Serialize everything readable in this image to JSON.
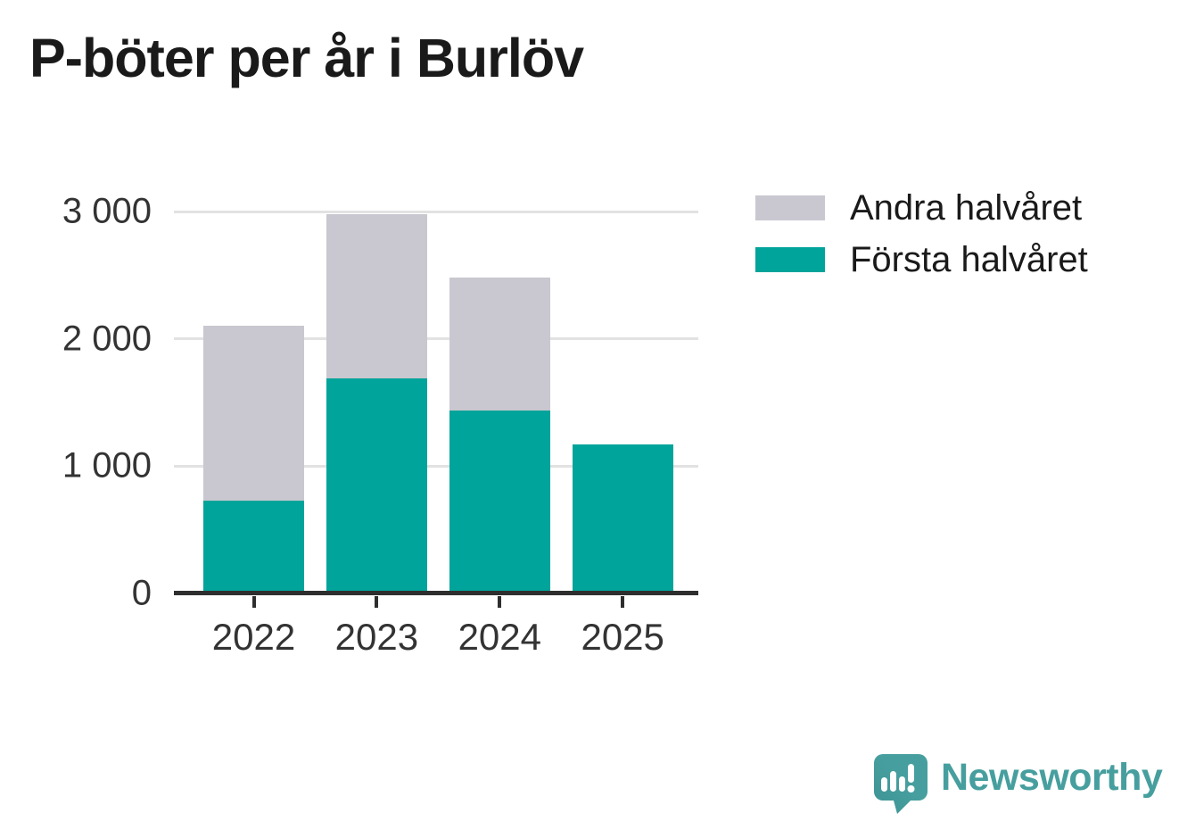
{
  "title": "P-böter per år i Burlöv",
  "legend": {
    "items": [
      {
        "label": "Andra halvåret",
        "color": "#c9c7cf"
      },
      {
        "label": "Första halvåret",
        "color": "#00a49a"
      }
    ]
  },
  "chart_data": {
    "type": "bar",
    "stacked": true,
    "title": "P-böter per år i Burlöv",
    "categories": [
      "2022",
      "2023",
      "2024",
      "2025"
    ],
    "series": [
      {
        "name": "Första halvåret",
        "color": "#00a49a",
        "values": [
          730,
          1690,
          1440,
          1170
        ]
      },
      {
        "name": "Andra halvåret",
        "color": "#c9c7cf",
        "values": [
          1370,
          1290,
          1040,
          0
        ]
      }
    ],
    "totals": [
      2100,
      2980,
      2480,
      1170
    ],
    "xlabel": "",
    "ylabel": "",
    "ylim": [
      0,
      3000
    ],
    "yticks": [
      0,
      1000,
      2000,
      3000
    ],
    "ytick_labels": [
      "0",
      "1 000",
      "2 000",
      "3 000"
    ],
    "grid": true,
    "legend_position": "right-top"
  },
  "colors": {
    "first_half": "#00a49a",
    "second_half": "#c9c7cf",
    "axis": "#2e2e2e",
    "gridline": "#e2e2e2",
    "text": "#1a1a1a",
    "brand": "#469f9e"
  },
  "footer": {
    "brand": "Newsworthy"
  }
}
